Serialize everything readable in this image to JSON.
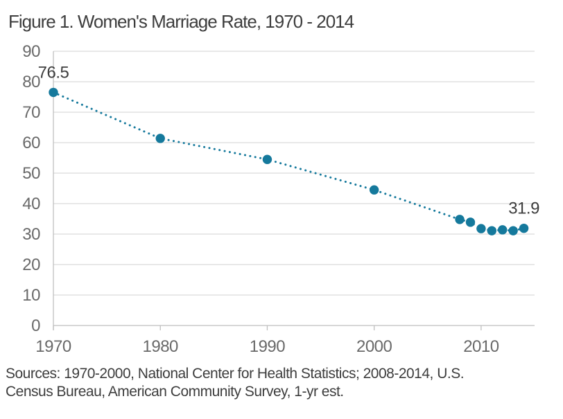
{
  "figure": {
    "title": "Figure 1. Women's Marriage Rate, 1970 - 2014",
    "source_lines": [
      "Sources: 1970-2000, National Center for Health Statistics; 2008-2014, U.S.",
      "Census Bureau, American Community Survey, 1-yr est."
    ]
  },
  "colors": {
    "accent_teal": "#15799c",
    "title_text": "#3d3d3d",
    "axis_text": "#696969",
    "gridline": "#d9d9d9",
    "axis_line": "#bfbfbf",
    "background": "#ffffff"
  },
  "chart_data": {
    "type": "line",
    "title": "Figure 1. Women's Marriage Rate, 1970 - 2014",
    "series_name": "Women's marriage rate",
    "x": [
      1970,
      1980,
      1990,
      2000,
      2008,
      2009,
      2010,
      2011,
      2012,
      2013,
      2014
    ],
    "y": [
      76.5,
      61.4,
      54.5,
      44.5,
      34.8,
      33.9,
      31.8,
      31.1,
      31.4,
      31.1,
      31.9
    ],
    "xlabel": "",
    "ylabel": "",
    "xlim": [
      1970,
      2015
    ],
    "ylim": [
      0,
      90
    ],
    "xticks": [
      1970,
      1980,
      1990,
      2000,
      2010
    ],
    "yticks": [
      0,
      10,
      20,
      30,
      40,
      50,
      60,
      70,
      80,
      90
    ],
    "grid": "horizontal",
    "legend": "none",
    "line_style": "dotted",
    "marker": "circle",
    "annotations": [
      {
        "x": 1970,
        "y": 76.5,
        "label": "76.5"
      },
      {
        "x": 2014,
        "y": 31.9,
        "label": "31.9"
      }
    ]
  }
}
